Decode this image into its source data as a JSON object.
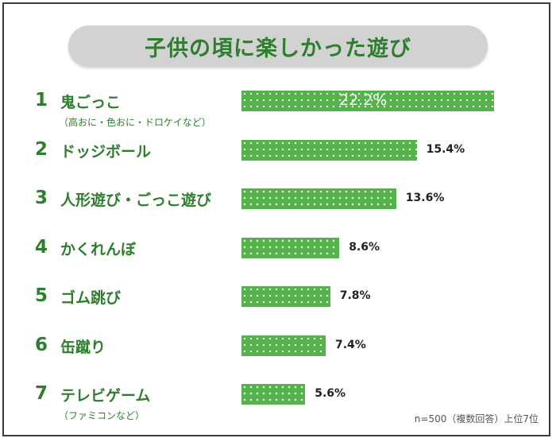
{
  "chart_data": {
    "type": "bar",
    "orientation": "horizontal",
    "title": "子供の頃に楽しかった遊び",
    "categories": [
      {
        "rank": "1",
        "label": "鬼ごっこ",
        "sublabel": "（高おに・色おに・ドロケイなど）"
      },
      {
        "rank": "2",
        "label": "ドッジボール",
        "sublabel": ""
      },
      {
        "rank": "3",
        "label": "人形遊び・ごっこ遊び",
        "sublabel": ""
      },
      {
        "rank": "4",
        "label": "かくれんぼ",
        "sublabel": ""
      },
      {
        "rank": "5",
        "label": "ゴム跳び",
        "sublabel": ""
      },
      {
        "rank": "6",
        "label": "缶蹴り",
        "sublabel": ""
      },
      {
        "rank": "7",
        "label": "テレビゲーム",
        "sublabel": "（ファミコンなど）"
      }
    ],
    "values": [
      22.2,
      15.4,
      13.6,
      8.6,
      7.8,
      7.4,
      5.6
    ],
    "value_labels": [
      "22.2%",
      "15.4%",
      "13.6%",
      "8.6%",
      "7.8%",
      "7.4%",
      "5.6%"
    ],
    "unit": "%",
    "note": "n=500（複数回答）上位7位",
    "colors": {
      "bar": "#55b24a",
      "text_green": "#2f7d2f",
      "title_bg": "#d2d2d2"
    }
  }
}
